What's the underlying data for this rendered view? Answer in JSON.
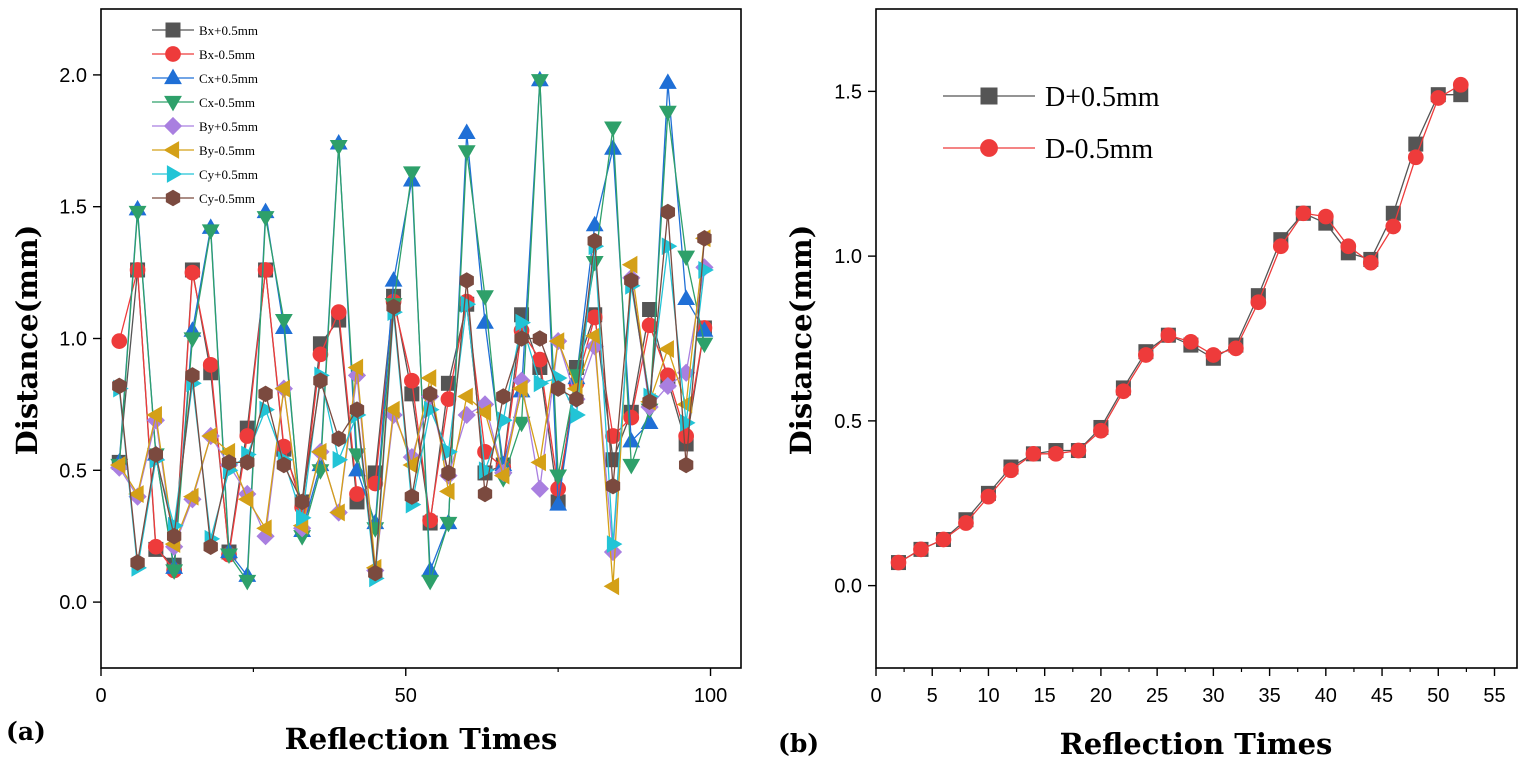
{
  "chart_data": [
    {
      "type": "line",
      "panel_label": "(a)",
      "xlabel": "Reflection Times",
      "ylabel": "Distance(mm)",
      "xlim": [
        0,
        105
      ],
      "ylim": [
        -0.25,
        2.25
      ],
      "xticks": [
        0,
        50,
        100
      ],
      "yticks": [
        0.0,
        0.5,
        1.0,
        1.5,
        2.0
      ],
      "ytick_labels": [
        "0.0",
        "0.5",
        "1.0",
        "1.5",
        "2.0"
      ],
      "legend_position": "top-left",
      "x": [
        3,
        6,
        9,
        12,
        15,
        18,
        21,
        24,
        27,
        30,
        33,
        36,
        39,
        42,
        45,
        48,
        51,
        54,
        57,
        60,
        63,
        66,
        69,
        72,
        75,
        78,
        81,
        84,
        87,
        90,
        93,
        96,
        99
      ],
      "series": [
        {
          "name": "Bx+0.5mm",
          "color": "#555555",
          "marker": "square",
          "values": [
            0.53,
            1.26,
            0.2,
            0.14,
            1.26,
            0.87,
            0.19,
            0.66,
            1.26,
            0.58,
            0.38,
            0.98,
            1.07,
            0.38,
            0.49,
            1.16,
            0.79,
            0.3,
            0.83,
            1.13,
            0.49,
            0.52,
            1.09,
            0.89,
            0.38,
            0.89,
            1.09,
            0.54,
            0.72,
            1.11,
            0.84,
            0.6,
            1.04
          ]
        },
        {
          "name": "Bx-0.5mm",
          "color": "#ee3b3b",
          "marker": "circle",
          "values": [
            0.99,
            1.26,
            0.21,
            0.12,
            1.25,
            0.9,
            0.18,
            0.63,
            1.26,
            0.59,
            0.36,
            0.94,
            1.1,
            0.41,
            0.45,
            1.14,
            0.84,
            0.31,
            0.77,
            1.14,
            0.57,
            0.51,
            1.03,
            0.92,
            0.43,
            0.83,
            1.08,
            0.63,
            0.7,
            1.05,
            0.86,
            0.63,
            1.04
          ]
        },
        {
          "name": "Cx+0.5mm",
          "color": "#1f6fd6",
          "marker": "triangle-up",
          "values": [
            0.53,
            1.49,
            0.56,
            0.13,
            1.03,
            1.42,
            0.19,
            0.1,
            1.48,
            1.04,
            0.27,
            0.52,
            1.74,
            0.5,
            0.3,
            1.22,
            1.6,
            0.12,
            0.3,
            1.78,
            1.06,
            0.52,
            0.8,
            1.98,
            0.37,
            0.85,
            1.43,
            1.72,
            0.61,
            0.68,
            1.97,
            1.15,
            1.03
          ]
        },
        {
          "name": "Cx-0.5mm",
          "color": "#2ea06a",
          "marker": "triangle-down",
          "values": [
            0.52,
            1.48,
            0.56,
            0.12,
            1.0,
            1.41,
            0.18,
            0.08,
            1.46,
            1.07,
            0.25,
            0.5,
            1.73,
            0.56,
            0.28,
            1.13,
            1.63,
            0.08,
            0.3,
            1.71,
            1.16,
            0.47,
            0.68,
            1.98,
            0.48,
            0.86,
            1.29,
            1.8,
            0.52,
            0.73,
            1.86,
            1.31,
            0.98
          ]
        },
        {
          "name": "By+0.5mm",
          "color": "#a97fe0",
          "marker": "diamond",
          "values": [
            0.51,
            0.4,
            0.69,
            0.21,
            0.39,
            0.63,
            0.52,
            0.41,
            0.25,
            0.81,
            0.28,
            0.57,
            0.34,
            0.86,
            0.12,
            0.71,
            0.55,
            0.78,
            0.48,
            0.71,
            0.75,
            0.49,
            0.84,
            0.43,
            0.99,
            0.77,
            0.97,
            0.19,
            1.23,
            0.74,
            0.82,
            0.87,
            1.27
          ]
        },
        {
          "name": "By-0.5mm",
          "color": "#d4a017",
          "marker": "triangle-left",
          "values": [
            0.52,
            0.41,
            0.71,
            0.22,
            0.4,
            0.63,
            0.57,
            0.39,
            0.28,
            0.81,
            0.29,
            0.57,
            0.34,
            0.89,
            0.13,
            0.73,
            0.52,
            0.85,
            0.42,
            0.78,
            0.72,
            0.48,
            0.81,
            0.53,
            0.99,
            0.81,
            1.01,
            0.06,
            1.28,
            0.76,
            0.96,
            0.75,
            1.38
          ]
        },
        {
          "name": "Cy+0.5mm",
          "color": "#22c4d6",
          "marker": "triangle-right",
          "values": [
            0.81,
            0.13,
            0.54,
            0.29,
            0.83,
            0.24,
            0.5,
            0.56,
            0.73,
            0.54,
            0.32,
            0.86,
            0.54,
            0.71,
            0.09,
            1.1,
            0.37,
            0.73,
            0.57,
            1.13,
            0.5,
            0.69,
            1.06,
            0.83,
            0.85,
            0.71,
            1.35,
            0.22,
            1.2,
            0.78,
            1.35,
            0.68,
            1.26
          ]
        },
        {
          "name": "Cy-0.5mm",
          "color": "#7b4a3f",
          "marker": "hexagon",
          "values": [
            0.82,
            0.15,
            0.56,
            0.25,
            0.86,
            0.21,
            0.53,
            0.53,
            0.79,
            0.52,
            0.38,
            0.84,
            0.62,
            0.73,
            0.11,
            1.12,
            0.4,
            0.79,
            0.49,
            1.22,
            0.41,
            0.78,
            1.0,
            1.0,
            0.81,
            0.77,
            1.37,
            0.44,
            1.22,
            0.76,
            1.48,
            0.52,
            1.38
          ]
        }
      ]
    },
    {
      "type": "line",
      "panel_label": "(b)",
      "xlabel": "Reflection Times",
      "ylabel": "Distance(mm)",
      "xlim": [
        0,
        57
      ],
      "ylim": [
        -0.25,
        1.75
      ],
      "xticks": [
        0,
        5,
        10,
        15,
        20,
        25,
        30,
        35,
        40,
        45,
        50,
        55
      ],
      "yticks": [
        0.0,
        0.5,
        1.0,
        1.5
      ],
      "ytick_labels": [
        "0.0",
        "0.5",
        "1.0",
        "1.5"
      ],
      "legend_position": "top-left",
      "x": [
        2,
        4,
        6,
        8,
        10,
        12,
        14,
        16,
        18,
        20,
        22,
        24,
        26,
        28,
        30,
        32,
        34,
        36,
        38,
        40,
        42,
        44,
        46,
        48,
        50,
        52
      ],
      "series": [
        {
          "name": "D+0.5mm",
          "color": "#555555",
          "marker": "square",
          "values": [
            0.07,
            0.11,
            0.14,
            0.2,
            0.28,
            0.36,
            0.4,
            0.41,
            0.41,
            0.48,
            0.6,
            0.71,
            0.76,
            0.73,
            0.69,
            0.73,
            0.88,
            1.05,
            1.13,
            1.1,
            1.01,
            0.99,
            1.13,
            1.34,
            1.49,
            1.49
          ]
        },
        {
          "name": "D-0.5mm",
          "color": "#ee3b3b",
          "marker": "circle",
          "values": [
            0.07,
            0.11,
            0.14,
            0.19,
            0.27,
            0.35,
            0.4,
            0.4,
            0.41,
            0.47,
            0.59,
            0.7,
            0.76,
            0.74,
            0.7,
            0.72,
            0.86,
            1.03,
            1.13,
            1.12,
            1.03,
            0.98,
            1.09,
            1.3,
            1.48,
            1.52
          ]
        }
      ]
    }
  ]
}
